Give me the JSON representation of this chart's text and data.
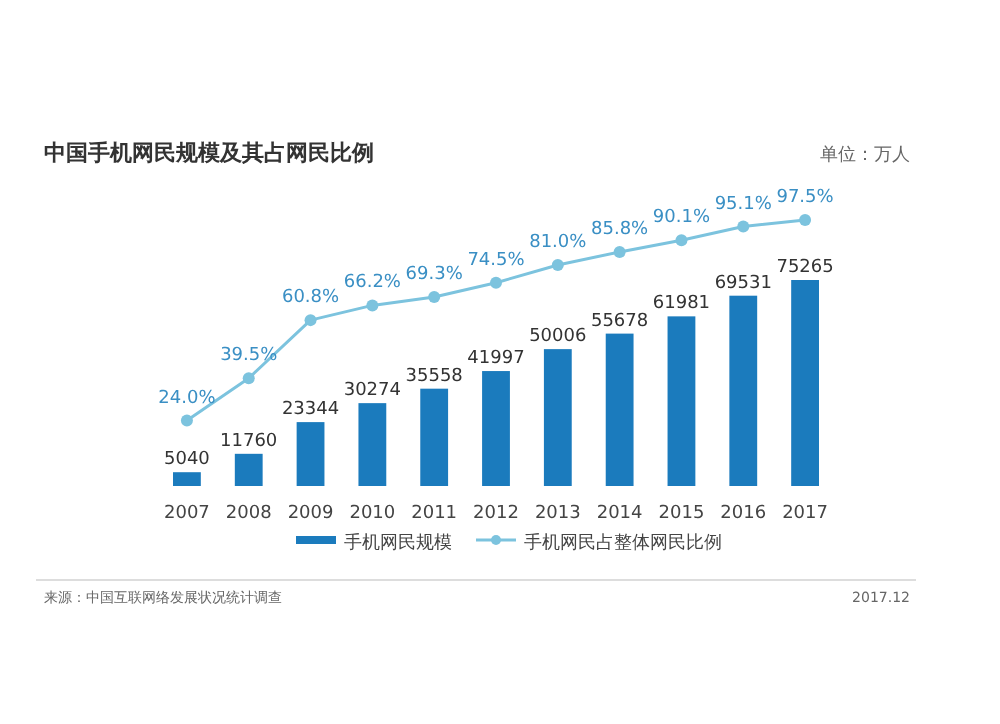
{
  "chart_data": {
    "type": "bar",
    "title": "中国手机网民规模及其占网民比例",
    "subtitle": "单位：万人",
    "categories": [
      "2007",
      "2008",
      "2009",
      "2010",
      "2011",
      "2012",
      "2013",
      "2014",
      "2015",
      "2016",
      "2017"
    ],
    "series": [
      {
        "name": "手机网民规模",
        "color": "#1b7bbd",
        "values": [
          5040,
          11760,
          23344,
          30274,
          35558,
          41997,
          50006,
          55678,
          61981,
          69531,
          75265
        ]
      },
      {
        "name": "手机网民占整体网民比例",
        "type": "line",
        "axis": "y2",
        "color": "#7cc3de",
        "marker": "circle",
        "value_labels": [
          "24.0%",
          "39.5%",
          "60.8%",
          "66.2%",
          "69.3%",
          "74.5%",
          "81.0%",
          "85.8%",
          "90.1%",
          "95.1%",
          "97.5%"
        ],
        "values": [
          24.0,
          39.5,
          60.8,
          66.2,
          69.3,
          74.5,
          81.0,
          85.8,
          90.1,
          95.1,
          97.5
        ]
      }
    ],
    "data_labels": true,
    "legend": "bottom",
    "grid": false,
    "annotations": [
      "来源：中国互联网络发展状况统计调查",
      "2017.12"
    ]
  }
}
